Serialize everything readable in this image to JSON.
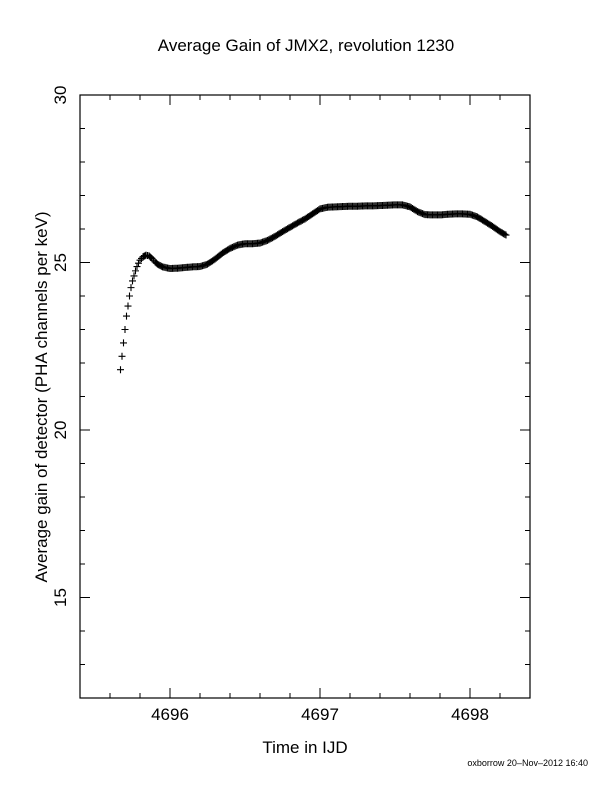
{
  "chart_data": {
    "type": "scatter",
    "title": "Average Gain of JMX2, revolution 1230",
    "xlabel": "Time in IJD",
    "ylabel": "Average gain of detector (PHA channels per keV)",
    "xlim": [
      4695.4,
      4698.4
    ],
    "ylim": [
      12,
      30
    ],
    "xticks": [
      4696,
      4697,
      4698
    ],
    "yticks": [
      15,
      20,
      25,
      30
    ],
    "grid": false,
    "marker": "+",
    "series": [
      {
        "x": [
          4695.67,
          4695.68,
          4695.69,
          4695.7,
          4695.71,
          4695.72,
          4695.73,
          4695.74,
          4695.75,
          4695.76,
          4695.77,
          4695.78,
          4695.79,
          4695.8,
          4695.82,
          4695.84,
          4695.86,
          4695.88,
          4695.9,
          4695.92,
          4695.95,
          4696.0,
          4696.05,
          4696.1,
          4696.15,
          4696.2,
          4696.25,
          4696.3,
          4696.35,
          4696.4,
          4696.45,
          4696.5,
          4696.55,
          4696.6,
          4696.65,
          4696.7,
          4696.75,
          4696.8,
          4696.85,
          4696.9,
          4696.95,
          4697.0,
          4697.05,
          4697.1,
          4697.15,
          4697.2,
          4697.25,
          4697.3,
          4697.35,
          4697.4,
          4697.45,
          4697.5,
          4697.55,
          4697.6,
          4697.65,
          4697.7,
          4697.75,
          4697.8,
          4697.85,
          4697.9,
          4697.95,
          4698.0,
          4698.05,
          4698.1,
          4698.15,
          4698.2,
          4698.24
        ],
        "y": [
          21.8,
          22.2,
          22.6,
          23.0,
          23.4,
          23.7,
          24.0,
          24.25,
          24.45,
          24.6,
          24.75,
          24.88,
          24.98,
          25.07,
          25.17,
          25.22,
          25.2,
          25.12,
          25.02,
          24.94,
          24.87,
          24.82,
          24.83,
          24.85,
          24.87,
          24.88,
          24.95,
          25.1,
          25.28,
          25.42,
          25.52,
          25.56,
          25.56,
          25.58,
          25.66,
          25.78,
          25.92,
          26.05,
          26.18,
          26.3,
          26.45,
          26.6,
          26.65,
          26.66,
          26.67,
          26.68,
          26.68,
          26.69,
          26.69,
          26.7,
          26.71,
          26.72,
          26.72,
          26.66,
          26.52,
          26.43,
          26.42,
          26.42,
          26.44,
          26.45,
          26.45,
          26.44,
          26.36,
          26.22,
          26.08,
          25.92,
          25.82
        ]
      }
    ]
  },
  "footer": "oxborrow 20–Nov–2012 16:40"
}
